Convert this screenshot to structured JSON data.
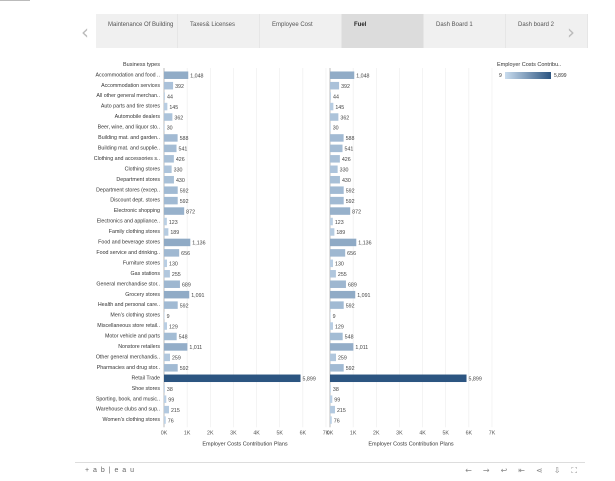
{
  "tabs": [
    {
      "label": "Maintenance Of Building"
    },
    {
      "label": "Taxes& Licenses"
    },
    {
      "label": "Employee Cost"
    },
    {
      "label": "Fuel"
    },
    {
      "label": "Dash Board 1"
    },
    {
      "label": "Dash board 2"
    }
  ],
  "active_tab": 3,
  "nav": {
    "prev": "‹",
    "next": "›"
  },
  "legend": {
    "title": "Employer Costs Contribu..",
    "min": "9",
    "max": "5,899",
    "color_low": "#c9dcee",
    "color_high": "#2c5581"
  },
  "footer": {
    "brand": "+ a b | e a u",
    "icons": [
      "undo-icon",
      "redo-icon",
      "revert-icon",
      "reset-icon",
      "share-icon",
      "download-icon",
      "fullscreen-icon"
    ]
  },
  "chart_data": [
    {
      "type": "bar",
      "orientation": "horizontal",
      "row_header": "Business types",
      "xlabel": "Employer Costs Contribution Plans",
      "xlim": [
        0,
        7000
      ],
      "x_ticks": [
        "0K",
        "1K",
        "2K",
        "3K",
        "4K",
        "5K",
        "6K",
        "7K"
      ],
      "grid": true,
      "categories": [
        "Accommodation and food ..",
        "Accommodation services",
        "All other general merchan..",
        "Auto parts and tire stores",
        "Automobile dealers",
        "Beer, wine, and liquor sto..",
        "Building mat. and garden..",
        "Building mat. and supplie..",
        "Clothing and accessories s..",
        "Clothing stores",
        "Department stores",
        "Department stores (excep..",
        "Discount dept. stores",
        "Electronic shopping",
        "Electronics and appliance..",
        "Family clothing stores",
        "Food and beverage stores",
        "Food service and drinking..",
        "Furniture stores",
        "Gas stations",
        "General merchandise stor..",
        "Grocery stores",
        "Health and personal care..",
        "Men's clothing stores",
        "Miscellaneous store retail..",
        "Motor vehicle and parts",
        "Nonstore retailers",
        "Other general merchandis..",
        "Pharmacies and drug stor..",
        "Retail Trade",
        "Shoe stores",
        "Sporting, book, and music..",
        "Warehouse clubs and sup..",
        "Women's clothing stores"
      ],
      "values": [
        1048,
        392,
        44,
        145,
        362,
        30,
        588,
        541,
        426,
        330,
        430,
        592,
        592,
        872,
        123,
        189,
        1136,
        656,
        130,
        255,
        689,
        1091,
        592,
        9,
        129,
        548,
        1011,
        259,
        592,
        5899,
        38,
        99,
        215,
        76
      ],
      "value_labels": [
        "1,048",
        "392",
        "44",
        "145",
        "362",
        "30",
        "588",
        "541",
        "426",
        "330",
        "430",
        "592",
        "592",
        "872",
        "123",
        "189",
        "1,136",
        "656",
        "130",
        "255",
        "689",
        "1,091",
        "592",
        "9",
        "129",
        "548",
        "1,011",
        "259",
        "592",
        "5,899",
        "38",
        "99",
        "215",
        "76"
      ]
    },
    {
      "type": "bar",
      "orientation": "horizontal",
      "xlabel": "Employer Costs Contribution Plans",
      "xlim": [
        0,
        7000
      ],
      "x_ticks": [
        "0K",
        "1K",
        "2K",
        "3K",
        "4K",
        "5K",
        "6K",
        "7K"
      ],
      "grid": true,
      "values": [
        1048,
        392,
        44,
        145,
        362,
        30,
        588,
        541,
        426,
        330,
        430,
        592,
        592,
        872,
        123,
        189,
        1136,
        656,
        130,
        255,
        689,
        1091,
        592,
        9,
        129,
        548,
        1011,
        259,
        592,
        5899,
        38,
        99,
        215,
        76
      ],
      "value_labels": [
        "1,048",
        "392",
        "44",
        "145",
        "362",
        "30",
        "588",
        "541",
        "426",
        "330",
        "430",
        "592",
        "592",
        "872",
        "123",
        "189",
        "1,136",
        "656",
        "130",
        "255",
        "689",
        "1,091",
        "592",
        "9",
        "129",
        "548",
        "1,011",
        "259",
        "592",
        "5,899",
        "38",
        "99",
        "215",
        "76"
      ]
    }
  ]
}
